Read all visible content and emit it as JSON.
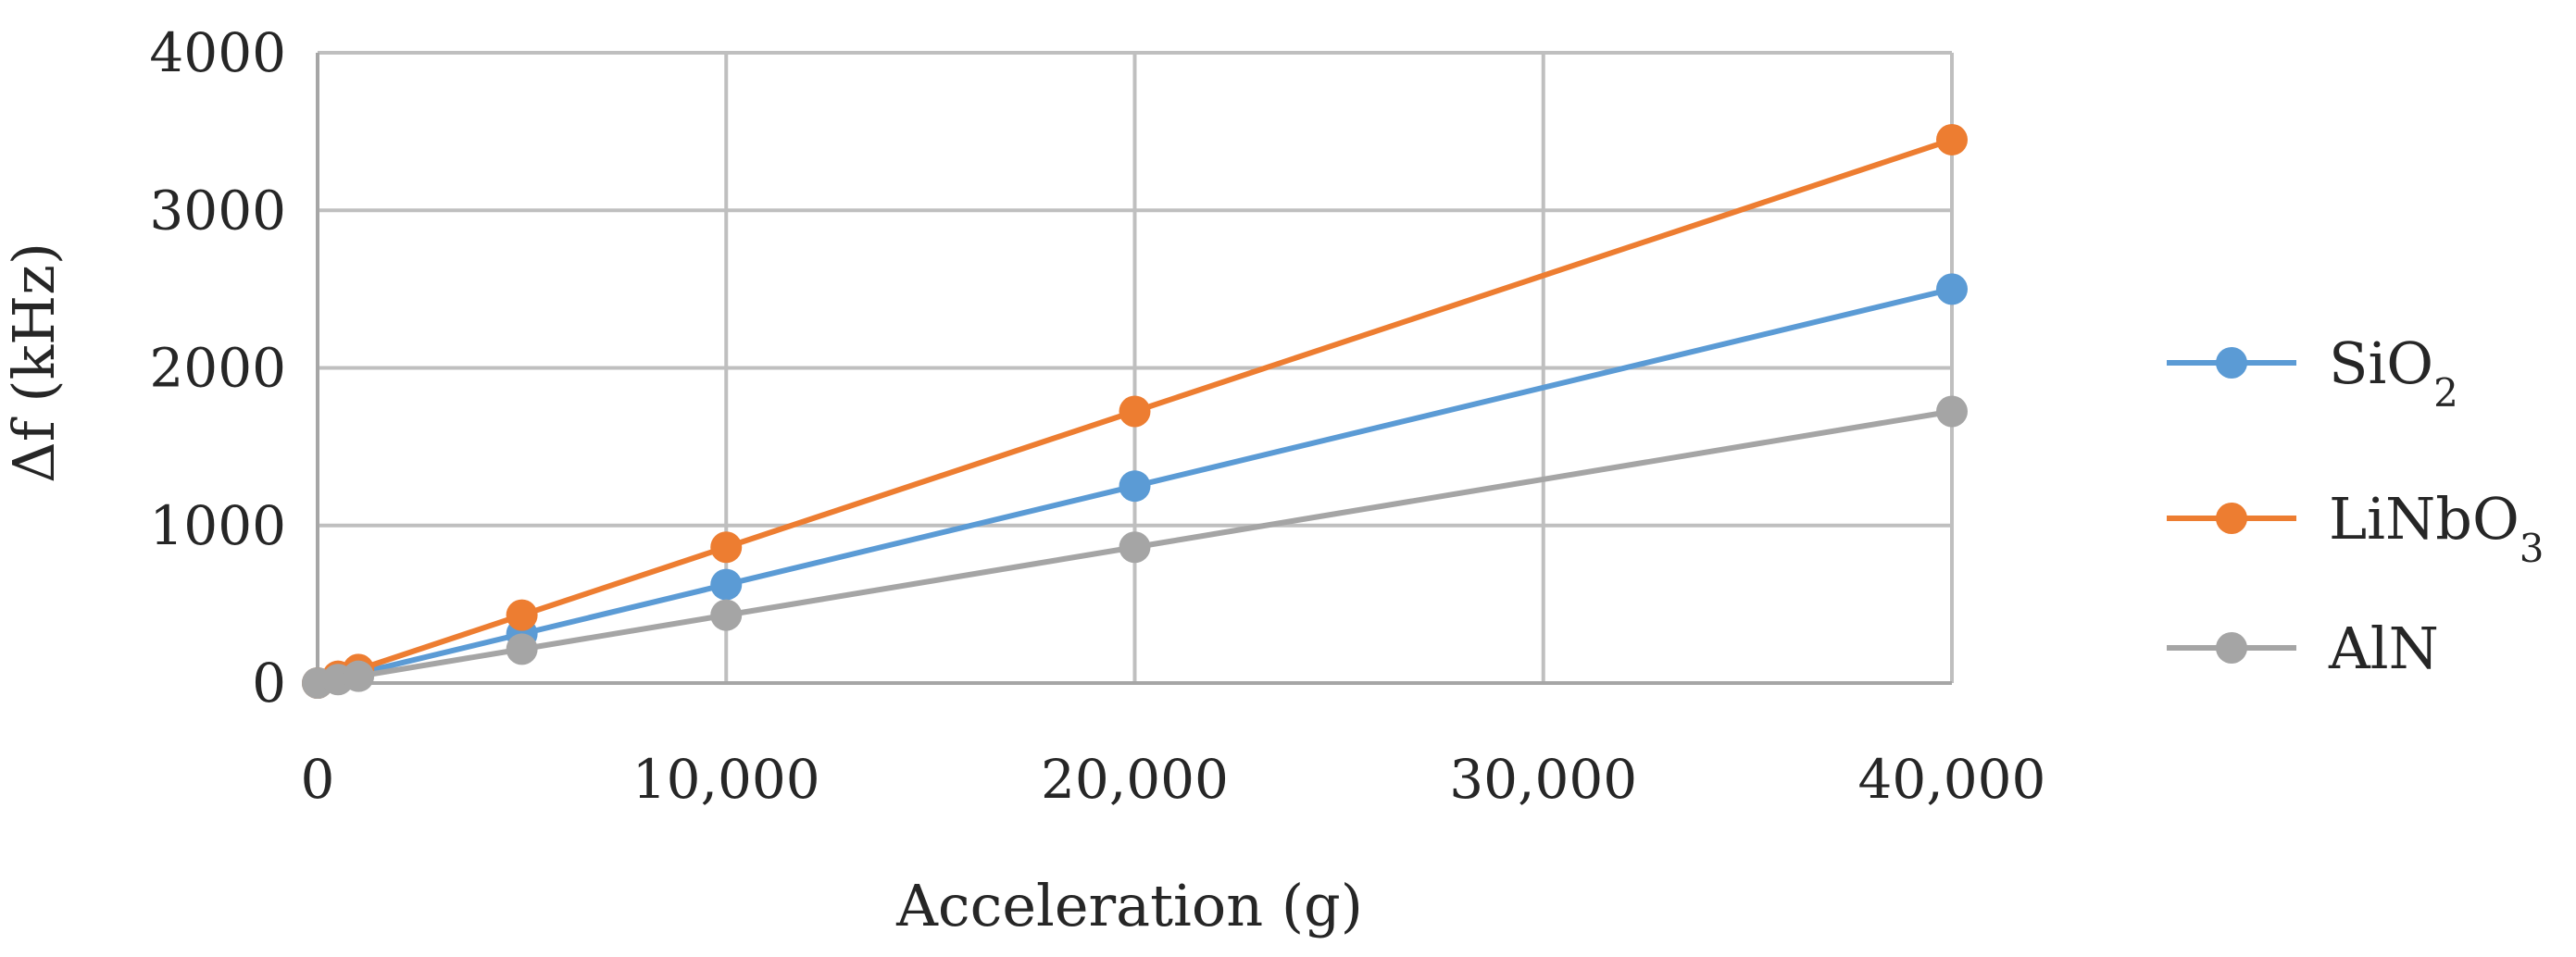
{
  "chart_data": {
    "type": "line",
    "title": "",
    "xlabel": "Acceleration (g)",
    "ylabel": "Δf (kHz)",
    "xlim": [
      0,
      40000
    ],
    "ylim": [
      0,
      4000
    ],
    "grid": true,
    "legend_position": "right",
    "x_ticks": [
      "0",
      "10,000",
      "20,000",
      "30,000",
      "40,000"
    ],
    "y_ticks": [
      "0",
      "1000",
      "2000",
      "3000",
      "4000"
    ],
    "x": [
      0,
      500,
      1000,
      5000,
      10000,
      20000,
      40000
    ],
    "series": [
      {
        "name": "SiO",
        "subscript": "2",
        "color": "#5B9BD5",
        "values": [
          0,
          31,
          62,
          312,
          625,
          1250,
          2500
        ]
      },
      {
        "name": "LiNbO",
        "subscript": "3",
        "color": "#ED7D31",
        "values": [
          0,
          43,
          86,
          431,
          862,
          1724,
          3448
        ]
      },
      {
        "name": "AlN",
        "subscript": "",
        "color": "#A5A5A5",
        "values": [
          0,
          22,
          43,
          215,
          431,
          862,
          1724
        ]
      }
    ]
  }
}
